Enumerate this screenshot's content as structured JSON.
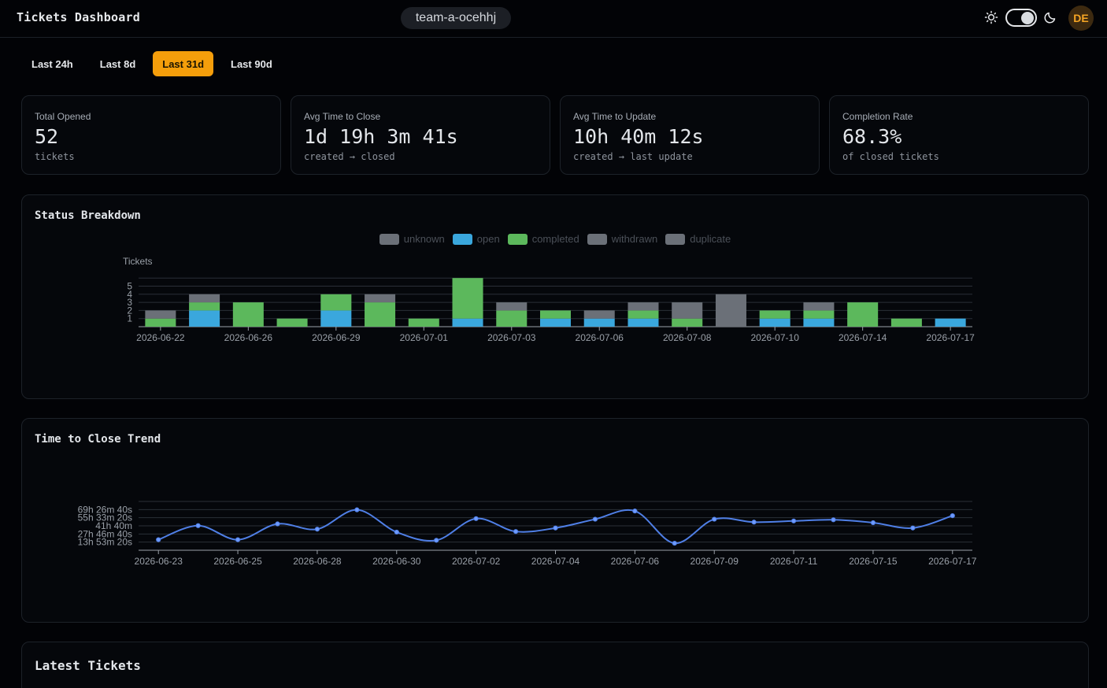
{
  "header": {
    "title": "Tickets Dashboard",
    "team": "team-a-ocehhj",
    "avatar_initials": "DE",
    "icons": {
      "light": "sun-icon",
      "dark": "moon-icon"
    }
  },
  "ranges": {
    "tabs": [
      "Last 24h",
      "Last 8d",
      "Last 31d",
      "Last 90d"
    ],
    "active": "Last 31d"
  },
  "stats": [
    {
      "label": "Total Opened",
      "value": "52",
      "sub": "tickets"
    },
    {
      "label": "Avg Time to Close",
      "value": "1d 19h 3m 41s",
      "sub": "created → closed"
    },
    {
      "label": "Avg Time to Update",
      "value": "10h 40m 12s",
      "sub": "created → last update"
    },
    {
      "label": "Completion Rate",
      "value": "68.3%",
      "sub": "of closed tickets"
    }
  ],
  "status_breakdown": {
    "title": "Status Breakdown",
    "legend": [
      {
        "name": "unknown",
        "color": "#6b7078"
      },
      {
        "name": "open",
        "color": "#3aa7dd"
      },
      {
        "name": "completed",
        "color": "#5cb85c"
      },
      {
        "name": "withdrawn",
        "color": "#6b7078"
      },
      {
        "name": "duplicate",
        "color": "#6b7078"
      }
    ]
  },
  "time_to_close": {
    "title": "Time to Close Trend"
  },
  "latest_tickets": {
    "title": "Latest Tickets"
  },
  "chart_data": [
    {
      "type": "bar",
      "stacked": true,
      "title": "Status Breakdown",
      "ylabel": "Tickets",
      "ylim": [
        0,
        6
      ],
      "yticks": [
        1,
        2,
        3,
        4,
        5
      ],
      "xtick_labels": [
        "2026-06-22",
        "2026-06-26",
        "2026-06-29",
        "2026-07-01",
        "2026-07-03",
        "2026-07-06",
        "2026-07-08",
        "2026-07-10",
        "2026-07-14",
        "2026-07-17"
      ],
      "bars": [
        {
          "open": 0,
          "completed": 1,
          "grey": 1
        },
        {
          "open": 2,
          "completed": 1,
          "grey": 1
        },
        {
          "open": 0,
          "completed": 3,
          "grey": 0
        },
        {
          "open": 0,
          "completed": 1,
          "grey": 0
        },
        {
          "open": 2,
          "completed": 2,
          "grey": 0
        },
        {
          "open": 0,
          "completed": 3,
          "grey": 1
        },
        {
          "open": 0,
          "completed": 1,
          "grey": 0
        },
        {
          "open": 1,
          "completed": 5,
          "grey": 0
        },
        {
          "open": 0,
          "completed": 2,
          "grey": 1
        },
        {
          "open": 1,
          "completed": 1,
          "grey": 0
        },
        {
          "open": 1,
          "completed": 0,
          "grey": 1
        },
        {
          "open": 1,
          "completed": 1,
          "grey": 1
        },
        {
          "open": 0,
          "completed": 1,
          "grey": 2
        },
        {
          "open": 0,
          "completed": 0,
          "grey": 4
        },
        {
          "open": 1,
          "completed": 1,
          "grey": 0
        },
        {
          "open": 1,
          "completed": 1,
          "grey": 1
        },
        {
          "open": 0,
          "completed": 3,
          "grey": 0
        },
        {
          "open": 0,
          "completed": 1,
          "grey": 0
        },
        {
          "open": 1,
          "completed": 0,
          "grey": 0
        }
      ]
    },
    {
      "type": "line",
      "title": "Time to Close Trend",
      "y_unit": "hours",
      "ylim": [
        0,
        83.33
      ],
      "ytick_labels": [
        "13h 53m 20s",
        "27h 46m 40s",
        "41h 40m",
        "55h 33m 20s",
        "69h 26m 40s"
      ],
      "xtick_labels": [
        "2026-06-23",
        "2026-06-25",
        "2026-06-28",
        "2026-06-30",
        "2026-07-02",
        "2026-07-04",
        "2026-07-06",
        "2026-07-09",
        "2026-07-11",
        "2026-07-15",
        "2026-07-17"
      ],
      "values": [
        18,
        42,
        18,
        45,
        36,
        69,
        31,
        17,
        54,
        32,
        38,
        53,
        67,
        12,
        53,
        48,
        50,
        52,
        47,
        38,
        59
      ]
    }
  ]
}
